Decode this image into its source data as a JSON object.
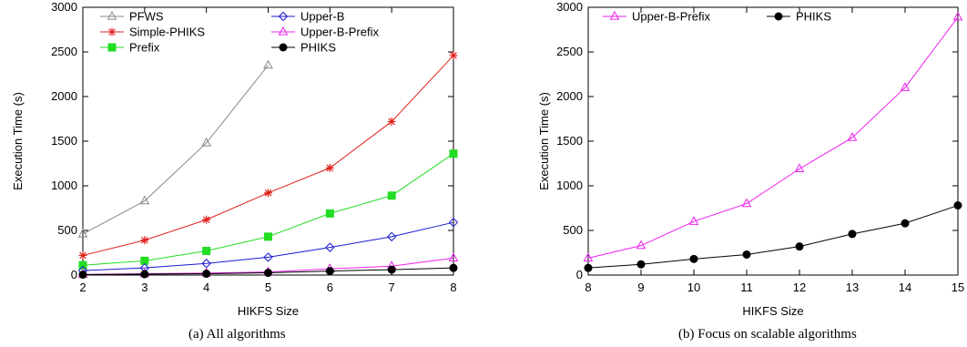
{
  "chart_data": [
    {
      "type": "line",
      "caption": "(a)  All algorithms",
      "xlabel": "HIKFS Size",
      "ylabel": "Execution Time (s)",
      "xlim": [
        2,
        8
      ],
      "ylim": [
        0,
        3000
      ],
      "xticks": [
        2,
        3,
        4,
        5,
        6,
        7,
        8
      ],
      "yticks": [
        0,
        500,
        1000,
        1500,
        2000,
        2500,
        3000
      ],
      "grid": false,
      "legend": "top-left, two columns",
      "series": [
        {
          "name": "PFWS",
          "color": "#888888",
          "marker": "triangle-open",
          "x": [
            2,
            3,
            4,
            5
          ],
          "values": [
            460,
            830,
            1480,
            2350
          ]
        },
        {
          "name": "Simple-PHIKS",
          "color": "#e0201b",
          "marker": "star",
          "x": [
            2,
            3,
            4,
            5,
            6,
            7,
            8
          ],
          "values": [
            220,
            390,
            620,
            920,
            1200,
            1720,
            2460
          ]
        },
        {
          "name": "Prefix",
          "color": "#22dd22",
          "marker": "square-filled",
          "x": [
            2,
            3,
            4,
            5,
            6,
            7,
            8
          ],
          "values": [
            110,
            160,
            270,
            430,
            690,
            890,
            1360
          ]
        },
        {
          "name": "Upper-B",
          "color": "#1a1ad0",
          "marker": "diamond-open",
          "x": [
            2,
            3,
            4,
            5,
            6,
            7,
            8
          ],
          "values": [
            50,
            80,
            130,
            200,
            310,
            430,
            590
          ]
        },
        {
          "name": "Upper-B-Prefix",
          "color": "#ee22ee",
          "marker": "triangle-open",
          "x": [
            2,
            3,
            4,
            5,
            6,
            7,
            8
          ],
          "values": [
            8,
            15,
            22,
            35,
            70,
            100,
            190
          ]
        },
        {
          "name": "PHIKS",
          "color": "#000000",
          "marker": "circle-filled",
          "x": [
            2,
            3,
            4,
            5,
            6,
            7,
            8
          ],
          "values": [
            5,
            10,
            15,
            25,
            45,
            60,
            80
          ]
        }
      ]
    },
    {
      "type": "line",
      "caption": "(b)  Focus on scalable algorithms",
      "xlabel": "HIKFS Size",
      "ylabel": "Execution Time (s)",
      "xlim": [
        8,
        15
      ],
      "ylim": [
        0,
        3000
      ],
      "xticks": [
        8,
        9,
        10,
        11,
        12,
        13,
        14,
        15
      ],
      "yticks": [
        0,
        500,
        1000,
        1500,
        2000,
        2500,
        3000
      ],
      "grid": false,
      "legend": "top-left, two columns",
      "series": [
        {
          "name": "Upper-B-Prefix",
          "color": "#ee22ee",
          "marker": "triangle-open",
          "x": [
            8,
            9,
            10,
            11,
            12,
            13,
            14,
            15
          ],
          "values": [
            190,
            330,
            600,
            800,
            1190,
            1540,
            2100,
            2890
          ]
        },
        {
          "name": "PHIKS",
          "color": "#000000",
          "marker": "circle-filled",
          "x": [
            8,
            9,
            10,
            11,
            12,
            13,
            14,
            15
          ],
          "values": [
            80,
            120,
            180,
            230,
            320,
            460,
            580,
            780
          ]
        }
      ]
    }
  ]
}
